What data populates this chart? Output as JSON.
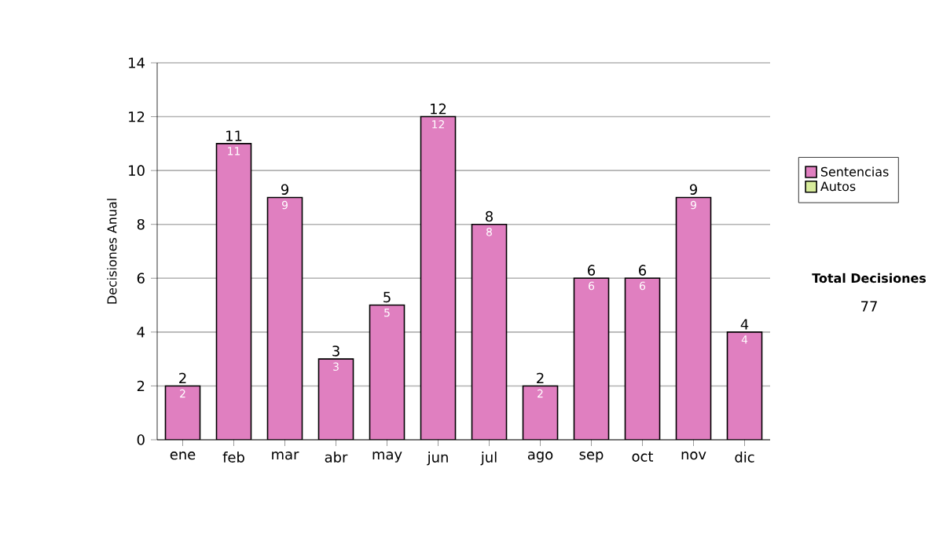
{
  "chart_data": {
    "type": "bar",
    "ylabel": "Decisiones Anual",
    "categories": [
      "ene",
      "feb",
      "mar",
      "abr",
      "may",
      "jun",
      "jul",
      "ago",
      "sep",
      "oct",
      "nov",
      "dic"
    ],
    "series": [
      {
        "name": "Sentencias",
        "color": "#e07fc0",
        "values": [
          2,
          11,
          9,
          3,
          5,
          12,
          8,
          2,
          6,
          6,
          9,
          4
        ],
        "value_labels": [
          "2",
          "11",
          "9",
          "3",
          "5",
          "12",
          "8",
          "2",
          "6",
          "6",
          "9",
          "4"
        ]
      },
      {
        "name": "Autos",
        "color": "#d8ec9c",
        "values": [
          0,
          0,
          0,
          0,
          0,
          0,
          0,
          0,
          0,
          0,
          0,
          0
        ]
      }
    ],
    "stacked": true,
    "totals": [
      "2",
      "11",
      "9",
      "3",
      "5",
      "12",
      "8",
      "2",
      "6",
      "6",
      "9",
      "4"
    ],
    "ylim": [
      0,
      14
    ],
    "yticks": [
      0,
      2,
      4,
      6,
      8,
      10,
      12,
      14
    ],
    "grid": "y",
    "legend": "right",
    "annotations": [
      "Total Decisiones",
      "77"
    ]
  }
}
